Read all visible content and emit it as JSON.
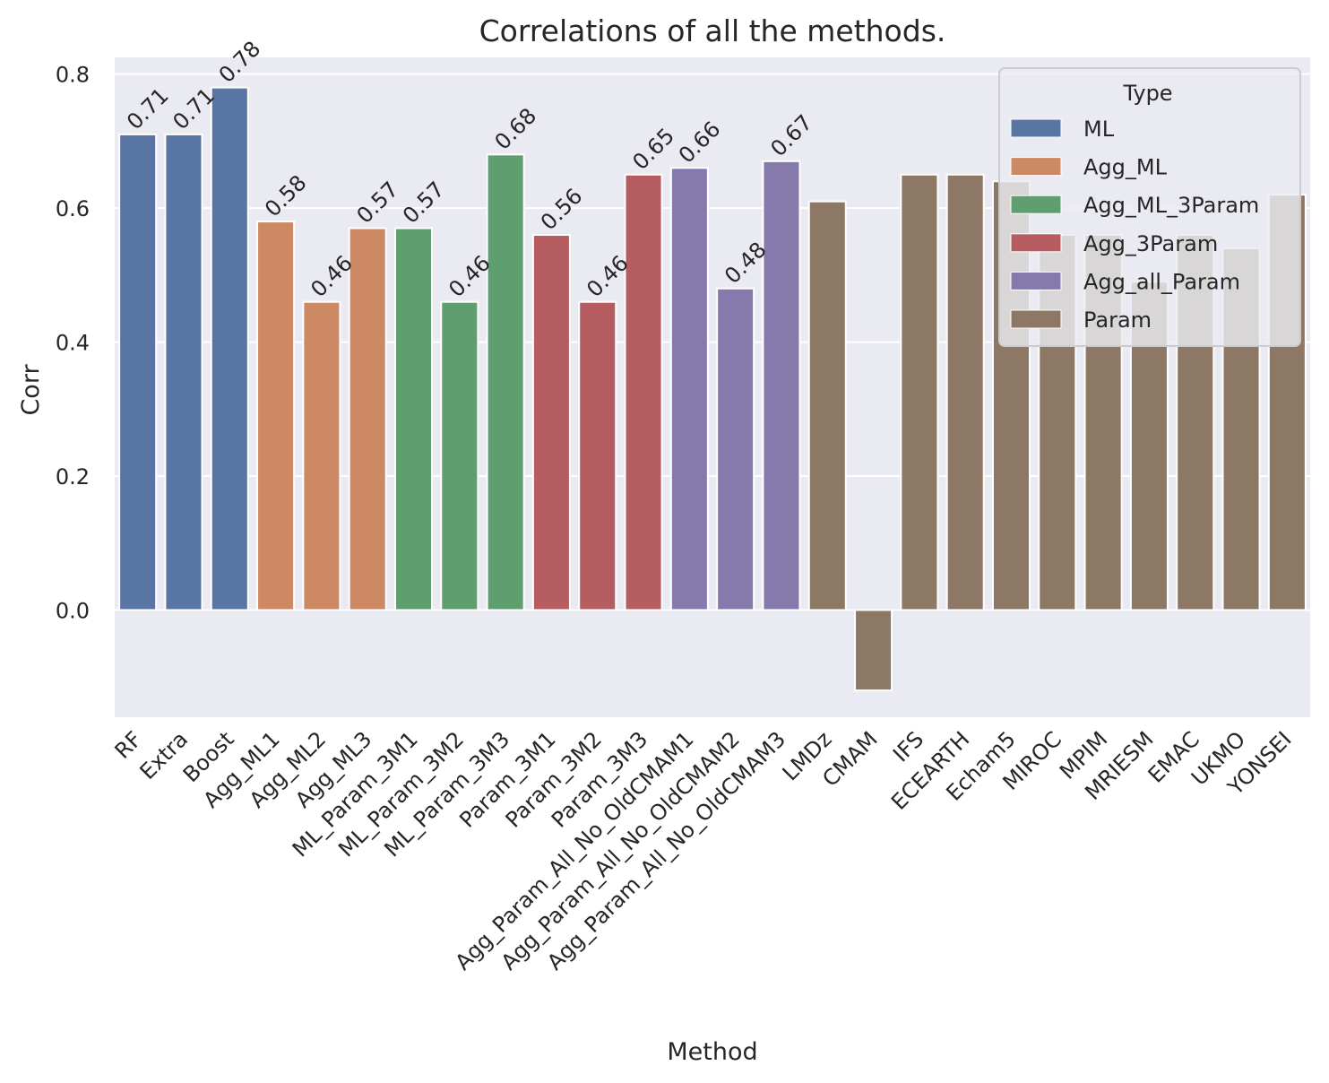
{
  "chart_data": {
    "type": "bar",
    "title": "Correlations of all the methods.",
    "xlabel": "Method",
    "ylabel": "Corr",
    "ylim": [
      -0.16,
      0.825
    ],
    "yticks": [
      0.0,
      0.2,
      0.4,
      0.6,
      0.8
    ],
    "ytick_labels": [
      "0.0",
      "0.2",
      "0.4",
      "0.6",
      "0.8"
    ],
    "grid": true,
    "legend": {
      "title": "Type",
      "placement": "top-right",
      "entries": [
        {
          "name": "ML",
          "color": "#5875a4"
        },
        {
          "name": "Agg_ML",
          "color": "#cc8963"
        },
        {
          "name": "Agg_ML_3Param",
          "color": "#5f9e6e"
        },
        {
          "name": "Agg_3Param",
          "color": "#b55d60"
        },
        {
          "name": "Agg_all_Param",
          "color": "#857aab"
        },
        {
          "name": "Param",
          "color": "#8d7866"
        }
      ]
    },
    "categories": [
      "RF",
      "Extra",
      "Boost",
      "Agg_ML1",
      "Agg_ML2",
      "Agg_ML3",
      "ML_Param_3M1",
      "ML_Param_3M2",
      "ML_Param_3M3",
      "Param_3M1",
      "Param_3M2",
      "Param_3M3",
      "Agg_Param_All_No_OldCMAM1",
      "Agg_Param_All_No_OldCMAM2",
      "Agg_Param_All_No_OldCMAM3",
      "LMDz",
      "CMAM",
      "IFS",
      "ECEARTH",
      "Echam5",
      "MIROC",
      "MPIM",
      "MRIESM",
      "EMAC",
      "UKMO",
      "YONSEI"
    ],
    "values": [
      0.71,
      0.71,
      0.78,
      0.58,
      0.46,
      0.57,
      0.57,
      0.46,
      0.68,
      0.56,
      0.46,
      0.65,
      0.66,
      0.48,
      0.67,
      0.61,
      -0.12,
      0.65,
      0.65,
      0.64,
      0.56,
      0.56,
      0.49,
      0.56,
      0.54,
      0.62
    ],
    "types": [
      "ML",
      "ML",
      "ML",
      "Agg_ML",
      "Agg_ML",
      "Agg_ML",
      "Agg_ML_3Param",
      "Agg_ML_3Param",
      "Agg_ML_3Param",
      "Agg_3Param",
      "Agg_3Param",
      "Agg_3Param",
      "Agg_all_Param",
      "Agg_all_Param",
      "Agg_all_Param",
      "Param",
      "Param",
      "Param",
      "Param",
      "Param",
      "Param",
      "Param",
      "Param",
      "Param",
      "Param",
      "Param"
    ],
    "data_labels": [
      "0.71",
      "0.71",
      "0.78",
      "0.58",
      "0.46",
      "0.57",
      "0.57",
      "0.46",
      "0.68",
      "0.56",
      "0.46",
      "0.65",
      "0.66",
      "0.48",
      "0.67",
      null,
      null,
      null,
      null,
      null,
      null,
      null,
      null,
      null,
      null,
      null
    ]
  }
}
